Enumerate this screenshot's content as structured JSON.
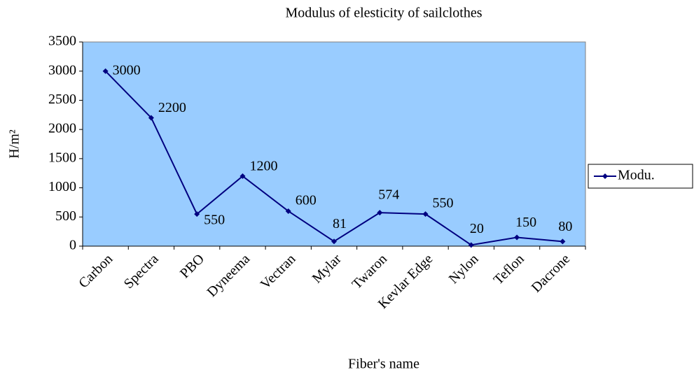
{
  "chart_data": {
    "type": "line",
    "title": "Modulus of elesticity of sailclothes",
    "x_label": "Fiber's name",
    "y_label": "H/m²",
    "categories": [
      "Carbon",
      "Spectra",
      "PBO",
      "Dyneema",
      "Vectran",
      "Mylar",
      "Twaron",
      "Kevlar Edge",
      "Nylon",
      "Teflon",
      "Dacrone"
    ],
    "series": [
      {
        "name": "Modu.",
        "color": "#000080",
        "values": [
          3000,
          2200,
          550,
          1200,
          600,
          81,
          574,
          550,
          20,
          150,
          80
        ]
      }
    ],
    "ylim": [
      0,
      3500
    ],
    "yticks": [
      0,
      500,
      1000,
      1500,
      2000,
      2500,
      3000,
      3500
    ],
    "plot_background": "#99ccff",
    "legend": "right"
  }
}
